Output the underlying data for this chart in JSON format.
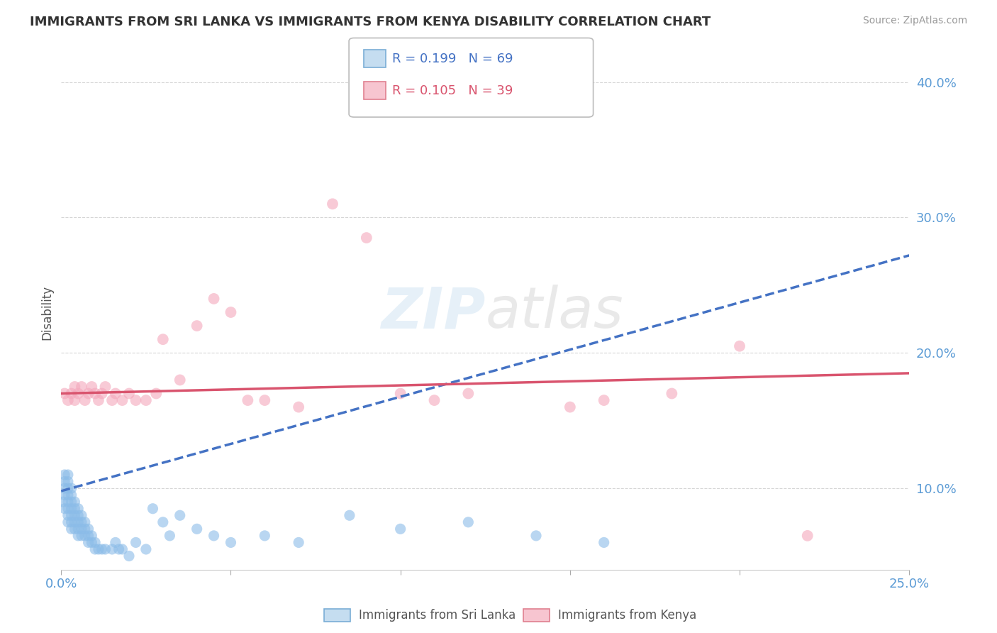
{
  "title": "IMMIGRANTS FROM SRI LANKA VS IMMIGRANTS FROM KENYA DISABILITY CORRELATION CHART",
  "source": "Source: ZipAtlas.com",
  "ylabel": "Disability",
  "xlim": [
    0.0,
    0.25
  ],
  "ylim": [
    0.04,
    0.42
  ],
  "yticks": [
    0.1,
    0.2,
    0.3,
    0.4
  ],
  "ytick_labels": [
    "10.0%",
    "20.0%",
    "30.0%",
    "40.0%"
  ],
  "xticks": [
    0.0,
    0.05,
    0.1,
    0.15,
    0.2,
    0.25
  ],
  "xtick_labels": [
    "0.0%",
    "",
    "",
    "",
    "",
    "25.0%"
  ],
  "sri_lanka_color": "#8bbce8",
  "kenya_color": "#f4a8bc",
  "sri_lanka_line_color": "#4472c4",
  "kenya_line_color": "#d9546e",
  "R_sri_lanka": 0.199,
  "N_sri_lanka": 69,
  "R_kenya": 0.105,
  "N_kenya": 39,
  "watermark": "ZIPatlas",
  "background_color": "#ffffff",
  "sri_lanka_x": [
    0.0005,
    0.001,
    0.001,
    0.001,
    0.001,
    0.001,
    0.002,
    0.002,
    0.002,
    0.002,
    0.002,
    0.002,
    0.002,
    0.002,
    0.003,
    0.003,
    0.003,
    0.003,
    0.003,
    0.003,
    0.003,
    0.004,
    0.004,
    0.004,
    0.004,
    0.004,
    0.005,
    0.005,
    0.005,
    0.005,
    0.005,
    0.006,
    0.006,
    0.006,
    0.006,
    0.007,
    0.007,
    0.007,
    0.008,
    0.008,
    0.008,
    0.009,
    0.009,
    0.01,
    0.01,
    0.011,
    0.012,
    0.013,
    0.015,
    0.016,
    0.017,
    0.018,
    0.02,
    0.022,
    0.025,
    0.027,
    0.03,
    0.032,
    0.035,
    0.04,
    0.045,
    0.05,
    0.06,
    0.07,
    0.085,
    0.1,
    0.12,
    0.14,
    0.16
  ],
  "sri_lanka_y": [
    0.09,
    0.085,
    0.095,
    0.1,
    0.105,
    0.11,
    0.075,
    0.08,
    0.085,
    0.09,
    0.095,
    0.1,
    0.105,
    0.11,
    0.07,
    0.075,
    0.08,
    0.085,
    0.09,
    0.095,
    0.1,
    0.07,
    0.075,
    0.08,
    0.085,
    0.09,
    0.065,
    0.07,
    0.075,
    0.08,
    0.085,
    0.065,
    0.07,
    0.075,
    0.08,
    0.065,
    0.07,
    0.075,
    0.06,
    0.065,
    0.07,
    0.06,
    0.065,
    0.055,
    0.06,
    0.055,
    0.055,
    0.055,
    0.055,
    0.06,
    0.055,
    0.055,
    0.05,
    0.06,
    0.055,
    0.085,
    0.075,
    0.065,
    0.08,
    0.07,
    0.065,
    0.06,
    0.065,
    0.06,
    0.08,
    0.07,
    0.075,
    0.065,
    0.06
  ],
  "kenya_x": [
    0.001,
    0.002,
    0.003,
    0.004,
    0.004,
    0.005,
    0.006,
    0.007,
    0.008,
    0.009,
    0.01,
    0.011,
    0.012,
    0.013,
    0.015,
    0.016,
    0.018,
    0.02,
    0.022,
    0.025,
    0.028,
    0.03,
    0.035,
    0.04,
    0.045,
    0.05,
    0.055,
    0.06,
    0.07,
    0.08,
    0.09,
    0.1,
    0.11,
    0.12,
    0.15,
    0.16,
    0.18,
    0.2,
    0.22
  ],
  "kenya_y": [
    0.17,
    0.165,
    0.17,
    0.175,
    0.165,
    0.17,
    0.175,
    0.165,
    0.17,
    0.175,
    0.17,
    0.165,
    0.17,
    0.175,
    0.165,
    0.17,
    0.165,
    0.17,
    0.165,
    0.165,
    0.17,
    0.21,
    0.18,
    0.22,
    0.24,
    0.23,
    0.165,
    0.165,
    0.16,
    0.31,
    0.285,
    0.17,
    0.165,
    0.17,
    0.16,
    0.165,
    0.17,
    0.205,
    0.065
  ],
  "sri_lanka_trend_x0": 0.0,
  "sri_lanka_trend_y0": 0.098,
  "sri_lanka_trend_x1": 0.25,
  "sri_lanka_trend_y1": 0.272,
  "kenya_trend_x0": 0.0,
  "kenya_trend_y0": 0.17,
  "kenya_trend_x1": 0.25,
  "kenya_trend_y1": 0.185
}
